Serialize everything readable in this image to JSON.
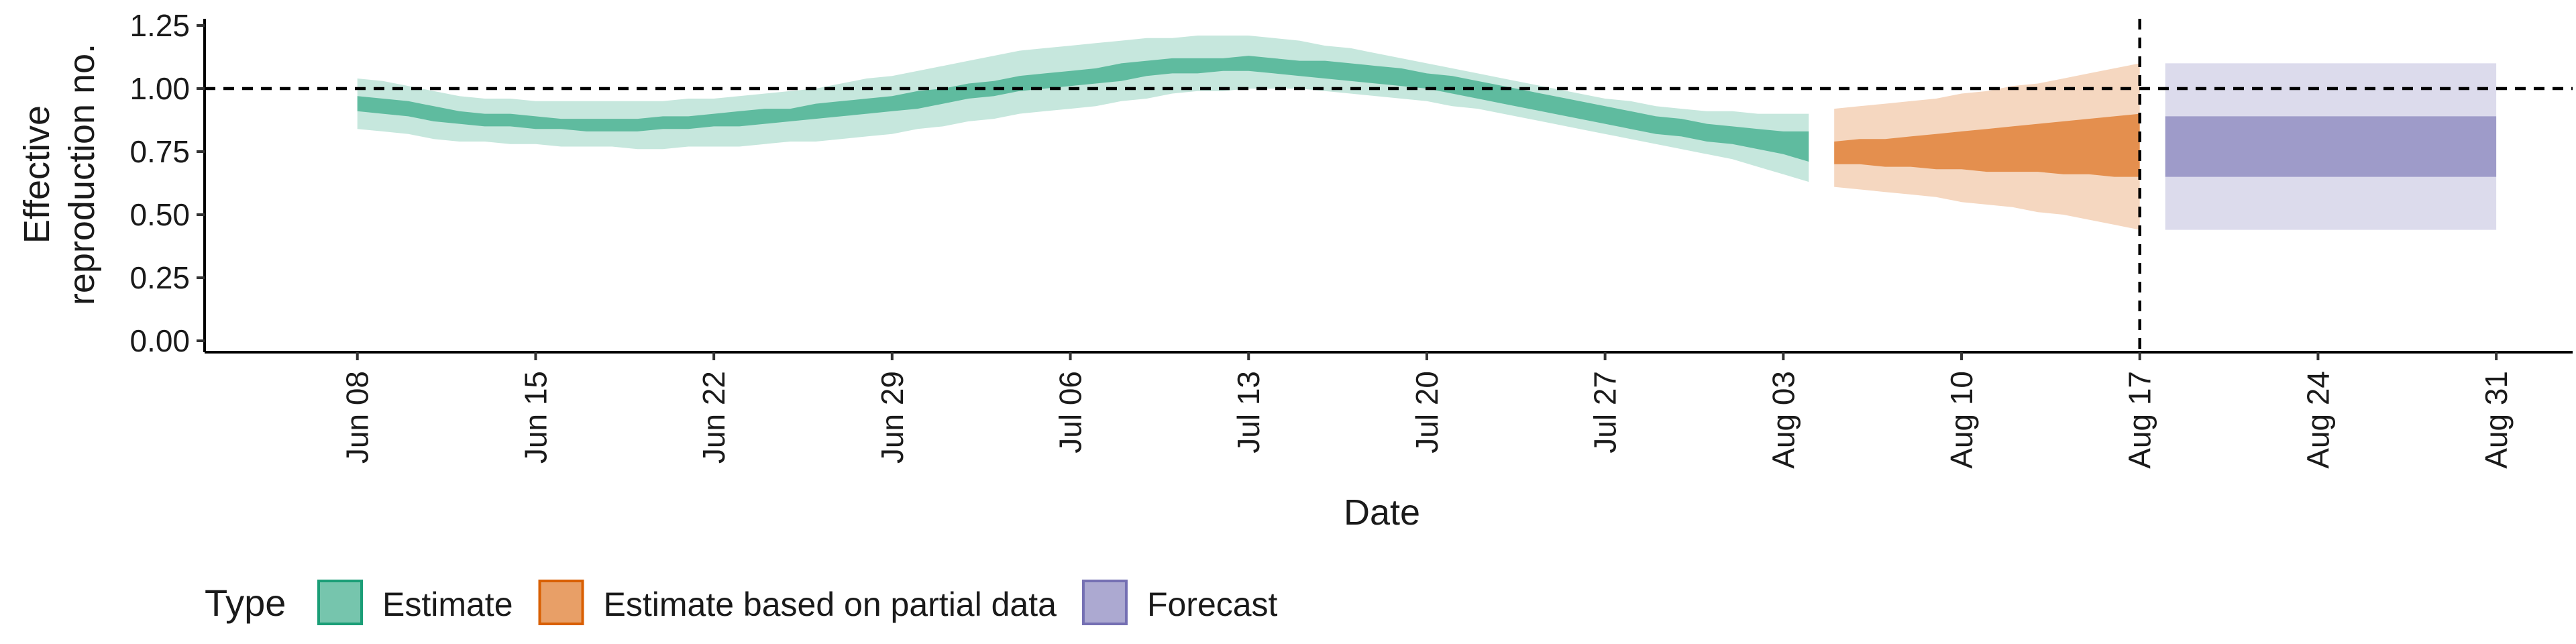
{
  "chart_data": {
    "type": "area",
    "xlabel": "Date",
    "ylabel_lines": [
      "Effective",
      "reproduction no."
    ],
    "ylim": [
      0,
      1.25
    ],
    "y_ticks": [
      0.0,
      0.25,
      0.5,
      0.75,
      1.0,
      1.25
    ],
    "y_tick_labels": [
      "0.00",
      "0.25",
      "0.50",
      "0.75",
      "1.00",
      "1.25"
    ],
    "x_range": [
      "2020-06-02",
      "2020-09-03"
    ],
    "x_ticks": [
      "2020-06-08",
      "2020-06-15",
      "2020-06-22",
      "2020-06-29",
      "2020-07-06",
      "2020-07-13",
      "2020-07-20",
      "2020-07-27",
      "2020-08-03",
      "2020-08-10",
      "2020-08-17",
      "2020-08-24",
      "2020-08-31"
    ],
    "x_tick_labels": [
      "Jun 08",
      "Jun 15",
      "Jun 22",
      "Jun 29",
      "Jul 06",
      "Jul 13",
      "Jul 20",
      "Jul 27",
      "Aug 03",
      "Aug 10",
      "Aug 17",
      "Aug 24",
      "Aug 31"
    ],
    "reference_lines": {
      "horizontal_y": 1.0,
      "vertical_x": "2020-08-17"
    },
    "legend": {
      "title": "Type",
      "position": "bottom",
      "entries": [
        {
          "name": "Estimate",
          "color": "#1b9e77"
        },
        {
          "name": "Estimate based on partial data",
          "color": "#d95f02"
        },
        {
          "name": "Forecast",
          "color": "#7570b3"
        }
      ]
    },
    "series": [
      {
        "name": "Estimate",
        "color": "#1b9e77",
        "x": [
          "2020-06-08",
          "2020-06-09",
          "2020-06-10",
          "2020-06-11",
          "2020-06-12",
          "2020-06-13",
          "2020-06-14",
          "2020-06-15",
          "2020-06-16",
          "2020-06-17",
          "2020-06-18",
          "2020-06-19",
          "2020-06-20",
          "2020-06-21",
          "2020-06-22",
          "2020-06-23",
          "2020-06-24",
          "2020-06-25",
          "2020-06-26",
          "2020-06-27",
          "2020-06-28",
          "2020-06-29",
          "2020-06-30",
          "2020-07-01",
          "2020-07-02",
          "2020-07-03",
          "2020-07-04",
          "2020-07-05",
          "2020-07-06",
          "2020-07-07",
          "2020-07-08",
          "2020-07-09",
          "2020-07-10",
          "2020-07-11",
          "2020-07-12",
          "2020-07-13",
          "2020-07-14",
          "2020-07-15",
          "2020-07-16",
          "2020-07-17",
          "2020-07-18",
          "2020-07-19",
          "2020-07-20",
          "2020-07-21",
          "2020-07-22",
          "2020-07-23",
          "2020-07-24",
          "2020-07-25",
          "2020-07-26",
          "2020-07-27",
          "2020-07-28",
          "2020-07-29",
          "2020-07-30",
          "2020-07-31",
          "2020-08-01",
          "2020-08-02",
          "2020-08-03",
          "2020-08-04"
        ],
        "lower_90": [
          0.84,
          0.83,
          0.82,
          0.8,
          0.79,
          0.79,
          0.78,
          0.78,
          0.77,
          0.77,
          0.77,
          0.76,
          0.76,
          0.77,
          0.77,
          0.77,
          0.78,
          0.79,
          0.79,
          0.8,
          0.81,
          0.82,
          0.84,
          0.85,
          0.87,
          0.88,
          0.9,
          0.91,
          0.92,
          0.93,
          0.95,
          0.96,
          0.98,
          0.99,
          0.99,
          1.0,
          1.0,
          1.0,
          0.99,
          0.98,
          0.97,
          0.96,
          0.95,
          0.93,
          0.92,
          0.9,
          0.88,
          0.86,
          0.84,
          0.82,
          0.8,
          0.78,
          0.76,
          0.74,
          0.72,
          0.69,
          0.66,
          0.63
        ],
        "lower_50": [
          0.91,
          0.9,
          0.89,
          0.87,
          0.86,
          0.85,
          0.85,
          0.84,
          0.84,
          0.83,
          0.83,
          0.83,
          0.84,
          0.84,
          0.85,
          0.85,
          0.86,
          0.87,
          0.88,
          0.89,
          0.9,
          0.91,
          0.92,
          0.94,
          0.96,
          0.97,
          0.99,
          1.0,
          1.01,
          1.02,
          1.03,
          1.05,
          1.06,
          1.06,
          1.07,
          1.07,
          1.06,
          1.05,
          1.04,
          1.03,
          1.02,
          1.01,
          1.0,
          0.98,
          0.96,
          0.94,
          0.92,
          0.9,
          0.88,
          0.86,
          0.84,
          0.82,
          0.81,
          0.79,
          0.78,
          0.76,
          0.74,
          0.71
        ],
        "upper_50": [
          0.97,
          0.96,
          0.95,
          0.93,
          0.91,
          0.9,
          0.9,
          0.89,
          0.88,
          0.88,
          0.88,
          0.88,
          0.89,
          0.89,
          0.9,
          0.91,
          0.92,
          0.92,
          0.94,
          0.95,
          0.96,
          0.97,
          0.99,
          1.0,
          1.02,
          1.03,
          1.05,
          1.06,
          1.07,
          1.08,
          1.1,
          1.11,
          1.12,
          1.12,
          1.12,
          1.13,
          1.12,
          1.11,
          1.11,
          1.1,
          1.09,
          1.08,
          1.06,
          1.05,
          1.03,
          1.01,
          0.99,
          0.97,
          0.95,
          0.93,
          0.91,
          0.89,
          0.88,
          0.86,
          0.85,
          0.84,
          0.83,
          0.83
        ],
        "upper_90": [
          1.04,
          1.03,
          1.01,
          0.99,
          0.97,
          0.96,
          0.96,
          0.95,
          0.95,
          0.95,
          0.95,
          0.95,
          0.95,
          0.96,
          0.96,
          0.97,
          0.98,
          0.99,
          1.0,
          1.02,
          1.04,
          1.05,
          1.07,
          1.09,
          1.11,
          1.13,
          1.15,
          1.16,
          1.17,
          1.18,
          1.19,
          1.2,
          1.2,
          1.21,
          1.21,
          1.21,
          1.2,
          1.19,
          1.17,
          1.16,
          1.14,
          1.12,
          1.1,
          1.08,
          1.06,
          1.04,
          1.02,
          1.0,
          0.98,
          0.96,
          0.95,
          0.93,
          0.92,
          0.91,
          0.91,
          0.9,
          0.9,
          0.9
        ]
      },
      {
        "name": "Estimate based on partial data",
        "color": "#d95f02",
        "x": [
          "2020-08-05",
          "2020-08-06",
          "2020-08-07",
          "2020-08-08",
          "2020-08-09",
          "2020-08-10",
          "2020-08-11",
          "2020-08-12",
          "2020-08-13",
          "2020-08-14",
          "2020-08-15",
          "2020-08-16",
          "2020-08-17"
        ],
        "lower_90": [
          0.61,
          0.6,
          0.59,
          0.58,
          0.57,
          0.55,
          0.54,
          0.53,
          0.51,
          0.5,
          0.48,
          0.46,
          0.44
        ],
        "lower_50": [
          0.7,
          0.7,
          0.69,
          0.69,
          0.68,
          0.68,
          0.67,
          0.67,
          0.67,
          0.66,
          0.66,
          0.65,
          0.65
        ],
        "upper_50": [
          0.79,
          0.8,
          0.8,
          0.81,
          0.82,
          0.83,
          0.84,
          0.85,
          0.86,
          0.87,
          0.88,
          0.89,
          0.9
        ],
        "upper_90": [
          0.92,
          0.93,
          0.94,
          0.95,
          0.96,
          0.98,
          0.99,
          1.01,
          1.02,
          1.04,
          1.06,
          1.08,
          1.1
        ]
      },
      {
        "name": "Forecast",
        "color": "#7570b3",
        "x": [
          "2020-08-18",
          "2020-08-31"
        ],
        "lower_90": [
          0.44,
          0.44
        ],
        "lower_50": [
          0.65,
          0.65
        ],
        "upper_50": [
          0.89,
          0.89
        ],
        "upper_90": [
          1.1,
          1.1
        ]
      }
    ]
  }
}
